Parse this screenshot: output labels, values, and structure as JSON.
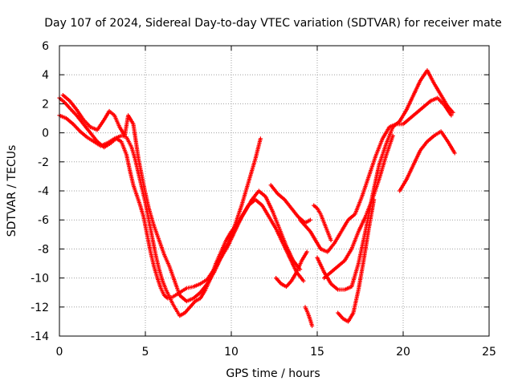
{
  "chart_data": {
    "type": "scatter",
    "title": "Day 107 of 2024, Sidereal Day-to-day VTEC variation (SDTVAR) for receiver mate",
    "xlabel": "GPS time / hours",
    "ylabel": "SDTVAR / TECUs",
    "xlim": [
      0,
      25
    ],
    "ylim": [
      -14,
      6
    ],
    "xticks": [
      0,
      5,
      10,
      15,
      20,
      25
    ],
    "yticks": [
      -14,
      -12,
      -10,
      -8,
      -6,
      -4,
      -2,
      0,
      2,
      4,
      6
    ],
    "grid": true,
    "marker": "+",
    "color": "#ff0000",
    "series": [
      {
        "x": [
          0.0,
          0.3,
          0.6,
          1.0,
          1.4,
          1.8,
          2.2,
          2.6,
          3.0,
          3.3,
          3.6,
          3.9,
          4.1,
          4.3,
          4.5,
          4.7,
          4.9,
          5.1,
          5.3,
          5.5,
          5.7,
          5.9,
          6.1,
          6.3,
          6.6,
          7.0,
          7.4,
          7.8,
          8.2,
          8.6,
          9.0,
          9.4,
          9.8,
          10.2,
          10.6,
          11.0,
          11.4,
          11.8,
          12.2,
          12.6,
          13.0,
          13.4,
          13.8,
          14.2
        ],
        "y": [
          2.4,
          2.1,
          1.7,
          1.2,
          0.6,
          0.0,
          -0.6,
          -1.0,
          -0.7,
          -0.4,
          -0.6,
          -1.5,
          -2.6,
          -3.6,
          -4.3,
          -5.0,
          -5.8,
          -7.0,
          -8.2,
          -9.2,
          -10.0,
          -10.7,
          -11.2,
          -11.4,
          -11.3,
          -11.0,
          -10.7,
          -10.6,
          -10.4,
          -10.1,
          -9.4,
          -8.6,
          -7.8,
          -6.8,
          -5.8,
          -5.0,
          -4.6,
          -5.0,
          -5.8,
          -6.6,
          -7.6,
          -8.6,
          -9.6,
          -10.2
        ]
      },
      {
        "x": [
          0.0,
          0.4,
          0.8,
          1.2,
          1.6,
          2.0,
          2.4,
          2.8,
          3.2,
          3.6,
          3.9,
          4.2,
          4.4,
          4.6,
          4.8,
          5.0,
          5.2,
          5.4,
          5.6,
          5.8,
          6.0,
          6.2,
          6.4,
          6.6,
          6.8,
          7.0,
          7.3,
          7.6,
          7.9,
          8.2,
          8.5,
          8.8,
          9.1,
          9.4,
          9.7,
          10.0,
          10.4,
          10.8,
          11.2,
          11.6,
          12.0,
          12.4,
          12.8,
          13.2,
          13.6,
          14.0
        ],
        "y": [
          1.2,
          1.0,
          0.6,
          0.1,
          -0.3,
          -0.6,
          -0.9,
          -0.7,
          -0.4,
          -0.2,
          -0.3,
          -1.0,
          -1.8,
          -2.8,
          -3.8,
          -4.8,
          -6.0,
          -7.2,
          -8.4,
          -9.4,
          -10.2,
          -10.8,
          -11.3,
          -11.8,
          -12.2,
          -12.6,
          -12.4,
          -12.0,
          -11.6,
          -11.4,
          -10.8,
          -10.0,
          -9.0,
          -8.2,
          -7.4,
          -6.8,
          -6.2,
          -5.4,
          -4.6,
          -4.0,
          -4.4,
          -5.4,
          -6.6,
          -7.8,
          -8.8,
          -9.4
        ]
      },
      {
        "x": [
          0.2,
          0.6,
          1.0,
          1.4,
          1.8,
          2.2,
          2.6,
          2.9,
          3.2,
          3.5,
          3.8,
          4.0,
          4.3,
          4.6,
          4.9,
          5.2,
          5.5,
          5.8,
          6.1,
          6.4,
          6.7,
          7.0,
          7.4,
          7.8,
          8.2,
          8.6,
          9.0,
          9.4,
          9.8,
          10.2,
          10.6,
          11.0,
          11.4,
          11.7
        ],
        "y": [
          2.6,
          2.2,
          1.6,
          0.9,
          0.4,
          0.2,
          0.9,
          1.5,
          1.2,
          0.4,
          -0.2,
          1.2,
          0.6,
          -1.8,
          -3.6,
          -5.2,
          -6.4,
          -7.4,
          -8.4,
          -9.2,
          -10.2,
          -11.2,
          -11.6,
          -11.4,
          -11.0,
          -10.4,
          -9.6,
          -8.6,
          -7.6,
          -6.4,
          -5.0,
          -3.4,
          -1.8,
          -0.4
        ]
      },
      {
        "x": [
          12.3,
          12.7,
          13.1,
          13.5,
          13.9,
          14.3,
          14.6
        ],
        "y": [
          -3.6,
          -4.2,
          -4.6,
          -5.2,
          -5.8,
          -6.2,
          -6.0
        ]
      },
      {
        "x": [
          12.6,
          12.9,
          13.2,
          13.5,
          13.8,
          14.1,
          14.4
        ],
        "y": [
          -10.0,
          -10.4,
          -10.6,
          -10.2,
          -9.6,
          -8.8,
          -8.2
        ]
      },
      {
        "x": [
          14.8,
          15.0,
          15.2,
          15.4,
          15.6,
          15.8
        ],
        "y": [
          -5.0,
          -5.2,
          -5.6,
          -6.2,
          -6.8,
          -7.4
        ]
      },
      {
        "x": [
          14.3,
          14.45,
          14.6,
          14.7
        ],
        "y": [
          -12.0,
          -12.4,
          -12.9,
          -13.3
        ]
      },
      {
        "x": [
          15.0,
          15.4,
          15.8,
          16.2,
          16.6,
          17.0,
          17.4,
          17.8,
          18.2,
          18.6,
          19.0,
          19.4,
          19.8,
          20.2,
          20.6,
          21.0,
          21.4,
          21.8,
          22.2,
          22.6,
          22.9
        ],
        "y": [
          -8.6,
          -9.6,
          -10.4,
          -10.8,
          -10.8,
          -10.6,
          -9.0,
          -6.8,
          -4.4,
          -2.2,
          -0.8,
          0.4,
          0.8,
          1.6,
          2.6,
          3.6,
          4.3,
          3.4,
          2.6,
          1.8,
          1.4
        ]
      },
      {
        "x": [
          15.2,
          15.6,
          16.0,
          16.4,
          16.8,
          17.2,
          17.6,
          18.0,
          18.4,
          18.8,
          19.2,
          19.6,
          20.0,
          20.4,
          20.8,
          21.2,
          21.6,
          22.0,
          22.4,
          22.8
        ],
        "y": [
          -8.0,
          -8.2,
          -7.6,
          -6.8,
          -6.0,
          -5.6,
          -4.4,
          -3.0,
          -1.6,
          -0.4,
          0.4,
          0.6,
          0.6,
          1.0,
          1.4,
          1.8,
          2.2,
          2.4,
          1.9,
          1.2
        ]
      },
      {
        "x": [
          15.4,
          15.8,
          16.2,
          16.6,
          17.0,
          17.4,
          17.8,
          18.2,
          18.6,
          19.0,
          19.4
        ],
        "y": [
          -10.0,
          -9.6,
          -9.2,
          -8.8,
          -8.0,
          -6.8,
          -5.8,
          -4.6,
          -3.2,
          -1.6,
          -0.2
        ]
      },
      {
        "x": [
          16.2,
          16.5,
          16.8,
          17.1,
          17.4,
          17.7,
          18.0,
          18.3
        ],
        "y": [
          -12.4,
          -12.8,
          -13.0,
          -12.4,
          -10.8,
          -8.8,
          -6.6,
          -4.6
        ]
      },
      {
        "x": [
          19.8,
          20.2,
          20.6,
          21.0,
          21.4,
          21.8,
          22.2,
          22.6,
          23.0
        ],
        "y": [
          -4.0,
          -3.2,
          -2.2,
          -1.2,
          -0.6,
          -0.2,
          0.1,
          -0.6,
          -1.4
        ]
      },
      {
        "x": [
          14.0,
          14.3,
          14.6,
          14.9,
          15.2
        ],
        "y": [
          -6.0,
          -6.4,
          -6.8,
          -7.4,
          -8.0
        ]
      }
    ]
  }
}
